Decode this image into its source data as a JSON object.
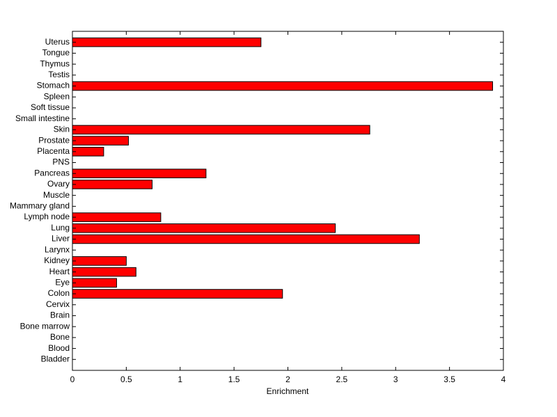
{
  "chart_data": {
    "type": "barh",
    "x_label": "Enrichment",
    "categories": [
      "Bladder",
      "Blood",
      "Bone",
      "Bone marrow",
      "Brain",
      "Cervix",
      "Colon",
      "Eye",
      "Heart",
      "Kidney",
      "Larynx",
      "Liver",
      "Lung",
      "Lymph node",
      "Mammary gland",
      "Muscle",
      "Ovary",
      "Pancreas",
      "PNS",
      "Placenta",
      "Prostate",
      "Skin",
      "Small intestine",
      "Soft tissue",
      "Spleen",
      "Stomach",
      "Testis",
      "Thymus",
      "Tongue",
      "Uterus"
    ],
    "values": [
      0,
      0,
      0,
      0,
      0,
      0,
      1.95,
      0.41,
      0.59,
      0.5,
      0,
      3.22,
      2.44,
      0.82,
      0,
      0,
      0.74,
      1.24,
      0,
      0.29,
      0.52,
      2.76,
      0,
      0,
      0,
      3.9,
      0,
      0,
      0,
      1.75
    ],
    "color": "#ff0000",
    "xlim": [
      0,
      4
    ],
    "xticks": [
      0,
      0.5,
      1,
      1.5,
      2,
      2.5,
      3,
      3.5,
      4
    ],
    "grid": false
  }
}
